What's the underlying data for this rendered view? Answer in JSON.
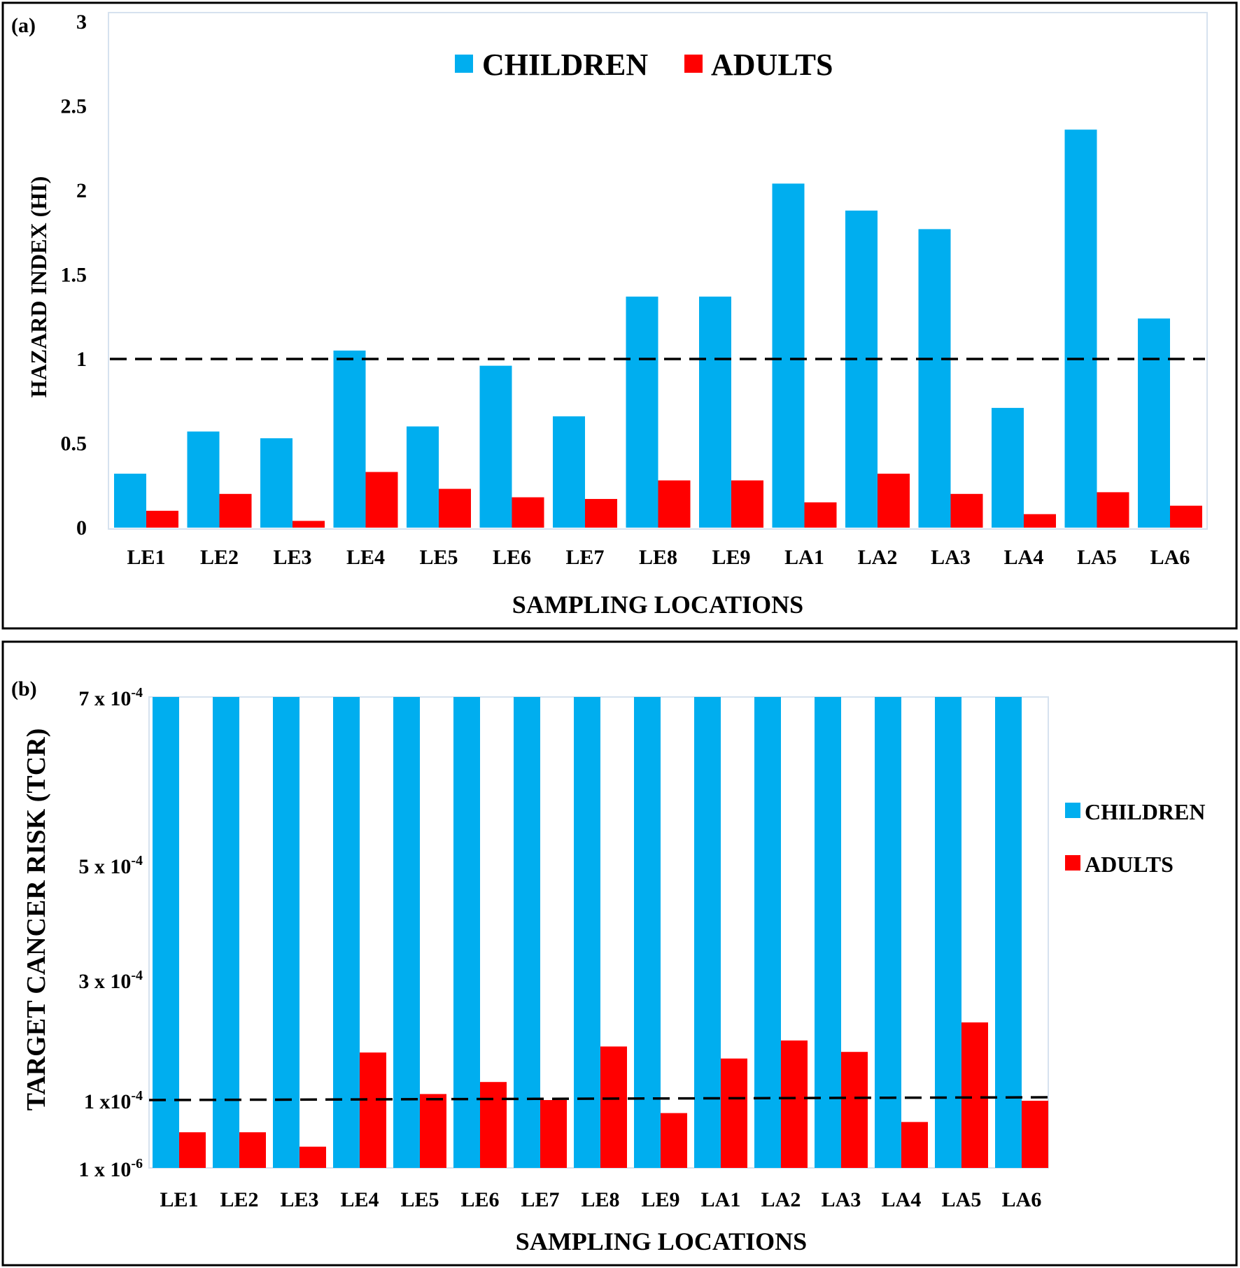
{
  "chart_data": [
    {
      "panel_label": "(a)",
      "type": "bar",
      "title": "",
      "xlabel": "SAMPLING LOCATIONS",
      "ylabel": "HAZARD INDEX (HI)",
      "ylim": [
        0,
        3
      ],
      "yticks": [
        {
          "value": 0,
          "label": "0"
        },
        {
          "value": 0.5,
          "label": "0.5"
        },
        {
          "value": 1,
          "label": "1"
        },
        {
          "value": 1.5,
          "label": "1.5"
        },
        {
          "value": 2,
          "label": "2"
        },
        {
          "value": 2.5,
          "label": "2.5"
        },
        {
          "value": 3,
          "label": "3"
        }
      ],
      "categories": [
        "LE1",
        "LE2",
        "LE3",
        "LE4",
        "LE5",
        "LE6",
        "LE7",
        "LE8",
        "LE9",
        "LA1",
        "LA2",
        "LA3",
        "LA4",
        "LA5",
        "LA6"
      ],
      "series": [
        {
          "name": "CHILDREN",
          "color": "#00AEEF",
          "values": [
            0.32,
            0.57,
            0.53,
            1.05,
            0.6,
            0.96,
            0.66,
            1.37,
            1.37,
            2.04,
            1.88,
            1.77,
            0.71,
            2.36,
            1.24
          ]
        },
        {
          "name": "ADULTS",
          "color": "#FF0000",
          "values": [
            0.1,
            0.2,
            0.04,
            0.33,
            0.23,
            0.18,
            0.17,
            0.28,
            0.28,
            0.15,
            0.32,
            0.2,
            0.08,
            0.21,
            0.13
          ]
        }
      ],
      "reference_line": 1,
      "legend_position": "top-center",
      "grid": false
    },
    {
      "panel_label": "(b)",
      "type": "bar",
      "title": "",
      "xlabel": "SAMPLING LOCATIONS",
      "ylabel": "TARGET CANCER RISK (TCR)",
      "scale_note": "nonlinear axis; values expressed in units of 1e-4",
      "ylim": [
        0.01,
        7.0
      ],
      "yticks": [
        {
          "value": 0.01,
          "mantissa": "1 x 10",
          "exp": "-6"
        },
        {
          "value": 1,
          "mantissa": "1 x10",
          "exp": "-4"
        },
        {
          "value": 3,
          "mantissa": "3 x 10",
          "exp": "-4"
        },
        {
          "value": 5,
          "mantissa": "5 x 10",
          "exp": "-4"
        },
        {
          "value": 7,
          "mantissa": "7 x 10",
          "exp": "-4"
        }
      ],
      "categories": [
        "LE1",
        "LE2",
        "LE3",
        "LE4",
        "LE5",
        "LE6",
        "LE7",
        "LE8",
        "LE9",
        "LA1",
        "LA2",
        "LA3",
        "LA4",
        "LA5",
        "LA6"
      ],
      "series": [
        {
          "name": "CHILDREN",
          "color": "#00AEEF",
          "values": [
            7.0,
            7.0,
            7.0,
            7.0,
            7.0,
            7.0,
            7.0,
            7.0,
            7.0,
            7.0,
            7.0,
            7.0,
            7.0,
            7.0,
            7.0
          ]
        },
        {
          "name": "ADULTS",
          "color": "#FF0000",
          "values": [
            0.53,
            0.53,
            0.32,
            1.79,
            1.1,
            1.3,
            1.0,
            1.89,
            0.81,
            1.69,
            1.99,
            1.8,
            0.68,
            2.29,
            0.99
          ]
        }
      ],
      "reference_line": 1,
      "legend_position": "right",
      "grid": false
    }
  ]
}
